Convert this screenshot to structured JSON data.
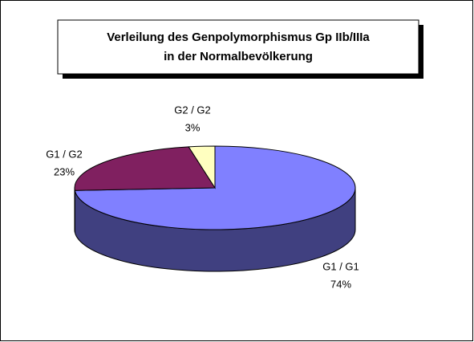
{
  "chart_data": {
    "type": "pie",
    "title": [
      "Verleilung des Genpolymorphismus Gp IIb/IIIa",
      "in der Normalbevölkerung"
    ],
    "categories": [
      "G1 / G1",
      "G1 / G2",
      "G2 / G2"
    ],
    "values": [
      74,
      23,
      3
    ],
    "value_labels": [
      "74%",
      "23%",
      "3%"
    ],
    "colors": [
      "#8080ff",
      "#802060",
      "#ffffc0"
    ],
    "side_colors": [
      "#404080",
      "#401030",
      "#80805f"
    ]
  }
}
